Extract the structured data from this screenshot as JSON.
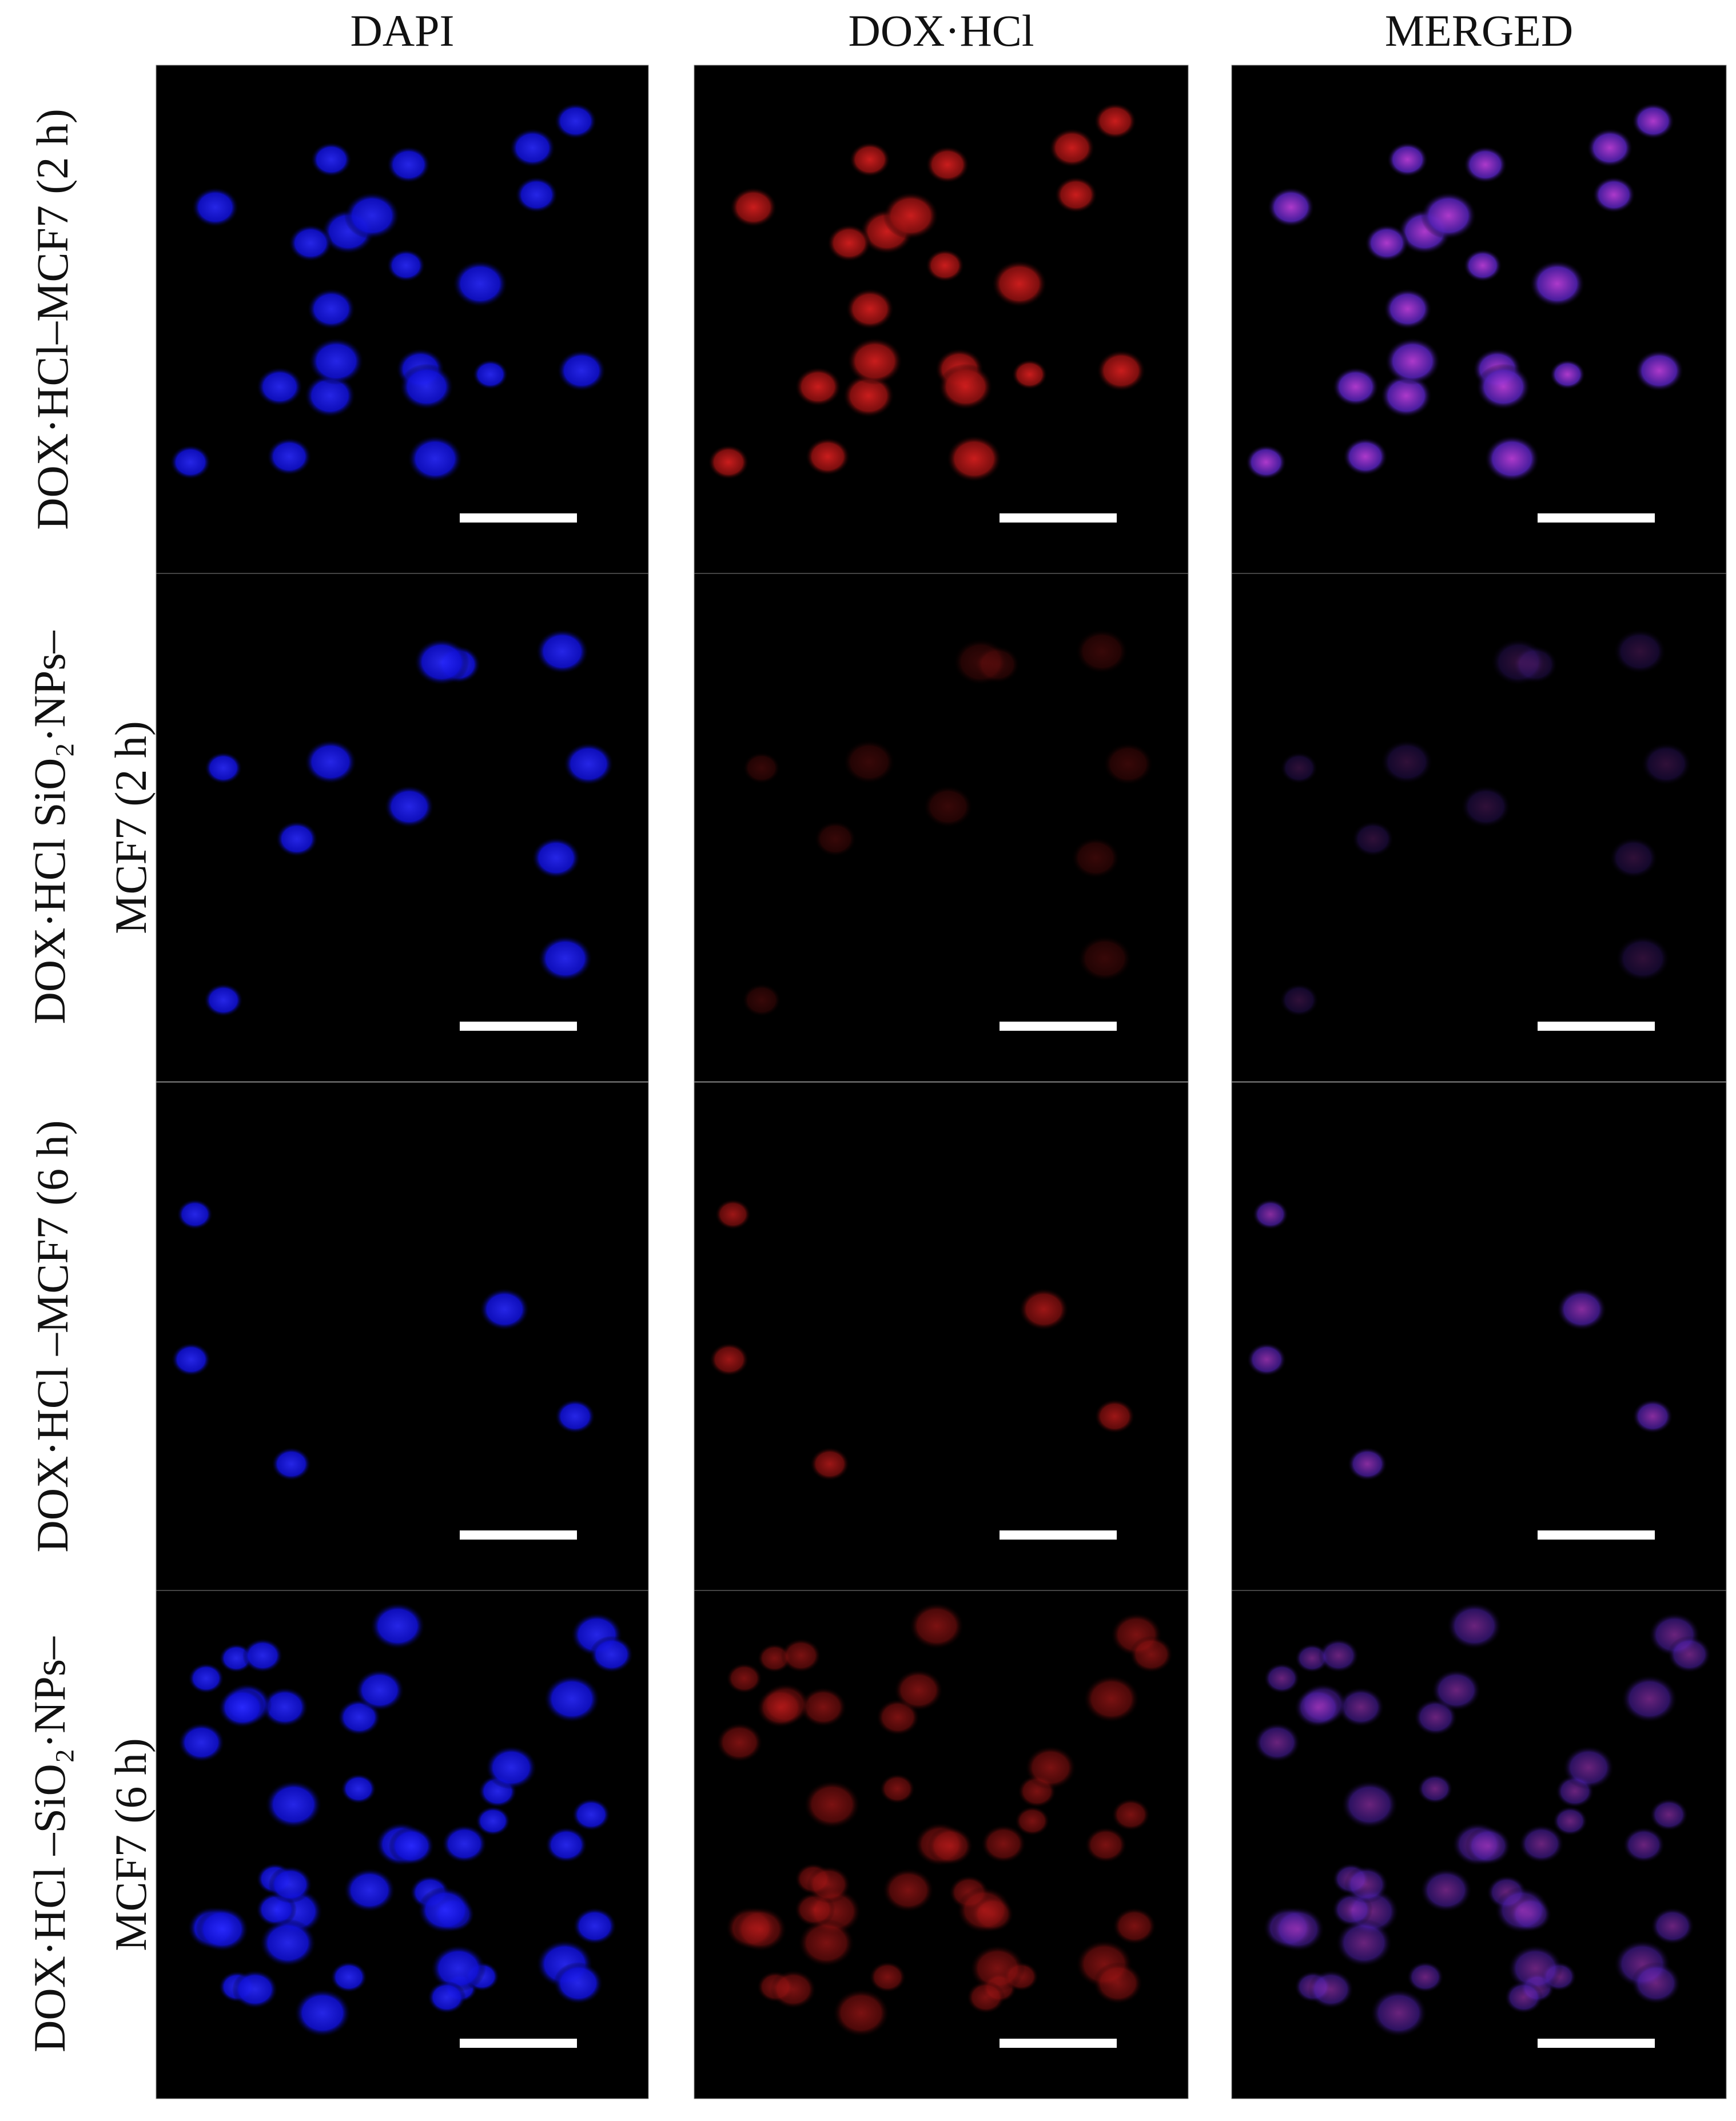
{
  "columns": [
    "DAPI",
    "DOX·HCl",
    "MERGED"
  ],
  "rows": [
    {
      "label_lines": [
        "DOX·HCl–MCF7 (2 h)"
      ]
    },
    {
      "label_lines": [
        "DOX·HCl SiO₂·NPs–",
        "MCF7 (2 h)"
      ]
    },
    {
      "label_lines": [
        "DOX·HCl –MCF7 (6 h)"
      ]
    },
    {
      "label_lines": [
        "DOX·HCl –SiO₂·NPs–",
        "MCF7 (6 h)"
      ]
    }
  ]
}
